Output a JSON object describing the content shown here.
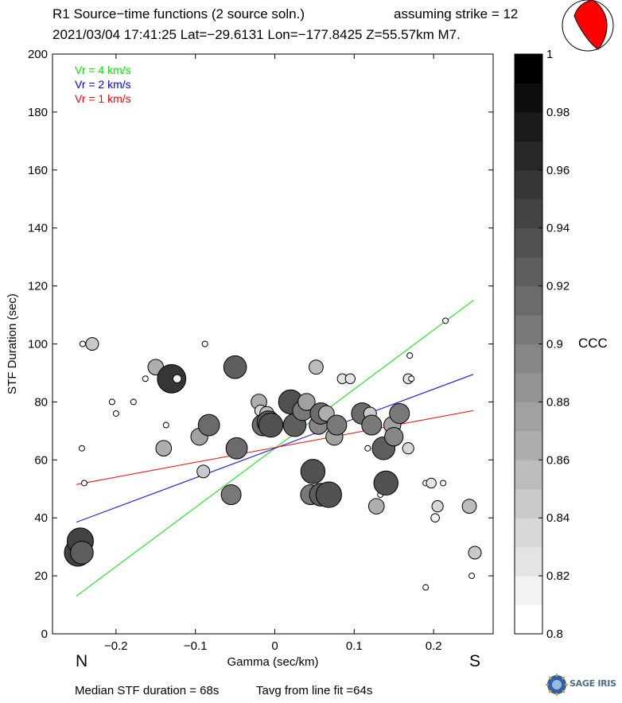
{
  "header": {
    "title_line1": "R1 Source−time functions (2 source soln.)",
    "strike_text": "assuming strike = 12",
    "title_line2": "2021/03/04 17:41:25  Lat=−29.6131 Lon=−177.8425  Z=55.57km  M7."
  },
  "directions": {
    "north": "N",
    "south": "S"
  },
  "summary": {
    "median_text": "Median STF duration = 68s",
    "tavg_text": "Tavg from line fit =64s"
  },
  "colorbar": {
    "label": "CCC",
    "min": 0.8,
    "max": 1.0,
    "levels": 20,
    "tick_values": [
      1,
      0.98,
      0.96,
      0.94,
      0.92,
      0.9,
      0.88,
      0.86,
      0.84,
      0.82,
      0.8
    ],
    "tick_labels": [
      "1",
      "0.98",
      "0.96",
      "0.94",
      "0.92",
      "0.9",
      "0.88",
      "0.86",
      "0.84",
      "0.82",
      "0.8"
    ]
  },
  "logo": {
    "text": "SAGE",
    "subtext": "IRIS",
    "icon": "nsf-globe-icon"
  },
  "chart_data": {
    "type": "scatter",
    "xlabel": "Gamma (sec/km)",
    "ylabel": "STF Duration (sec)",
    "xlim": [
      -0.28,
      0.275
    ],
    "ylim": [
      0,
      200
    ],
    "xticks": [
      -0.2,
      -0.1,
      0,
      0.1,
      0.2
    ],
    "xtick_labels": [
      "−0.2",
      "−0.1",
      "0",
      "0.1",
      "0.2"
    ],
    "yticks": [
      0,
      20,
      40,
      60,
      80,
      100,
      120,
      140,
      160,
      180,
      200
    ],
    "ytick_labels": [
      "0",
      "20",
      "40",
      "60",
      "80",
      "100",
      "120",
      "140",
      "160",
      "180",
      "200"
    ],
    "legend": [
      {
        "label": "Vr = 4 km/s",
        "color": "#00e600"
      },
      {
        "label": "Vr = 2 km/s",
        "color": "#0000ff"
      },
      {
        "label": "Vr = 1 km/s",
        "color": "#ff0000"
      }
    ],
    "lines": [
      {
        "name": "Vr = 4 km/s",
        "color": "#00e600",
        "x": [
          -0.25,
          0.25
        ],
        "y": [
          13,
          115
        ]
      },
      {
        "name": "Vr = 2 km/s",
        "color": "#0000ff",
        "x": [
          -0.25,
          0.25
        ],
        "y": [
          38.5,
          89.5
        ]
      },
      {
        "name": "Vr = 1 km/s",
        "color": "#ff0000",
        "x": [
          -0.25,
          0.25
        ],
        "y": [
          51.5,
          77
        ]
      }
    ],
    "points": [
      {
        "x": -0.248,
        "y": 28,
        "ccc": 0.95
      },
      {
        "x": -0.245,
        "y": 32,
        "ccc": 0.945
      },
      {
        "x": -0.243,
        "y": 28,
        "ccc": 0.92
      },
      {
        "x": -0.242,
        "y": 100,
        "ccc": 0.8
      },
      {
        "x": -0.243,
        "y": 64,
        "ccc": 0.8
      },
      {
        "x": -0.24,
        "y": 52,
        "ccc": 0.8
      },
      {
        "x": -0.23,
        "y": 100,
        "ccc": 0.85
      },
      {
        "x": -0.205,
        "y": 80,
        "ccc": 0.8
      },
      {
        "x": -0.2,
        "y": 76,
        "ccc": 0.8
      },
      {
        "x": -0.178,
        "y": 80,
        "ccc": 0.8
      },
      {
        "x": -0.163,
        "y": 88,
        "ccc": 0.8
      },
      {
        "x": -0.15,
        "y": 92,
        "ccc": 0.87
      },
      {
        "x": -0.14,
        "y": 64,
        "ccc": 0.87
      },
      {
        "x": -0.137,
        "y": 72,
        "ccc": 0.8
      },
      {
        "x": -0.13,
        "y": 88,
        "ccc": 0.96
      },
      {
        "x": -0.123,
        "y": 88,
        "ccc": 0.82
      },
      {
        "x": -0.095,
        "y": 68,
        "ccc": 0.88
      },
      {
        "x": -0.09,
        "y": 56,
        "ccc": 0.85
      },
      {
        "x": -0.088,
        "y": 100,
        "ccc": 0.8
      },
      {
        "x": -0.083,
        "y": 72,
        "ccc": 0.91
      },
      {
        "x": -0.055,
        "y": 48,
        "ccc": 0.9
      },
      {
        "x": -0.05,
        "y": 92,
        "ccc": 0.92
      },
      {
        "x": -0.048,
        "y": 64,
        "ccc": 0.91
      },
      {
        "x": -0.02,
        "y": 80,
        "ccc": 0.87
      },
      {
        "x": -0.018,
        "y": 77,
        "ccc": 0.84
      },
      {
        "x": -0.015,
        "y": 75,
        "ccc": 0.8
      },
      {
        "x": -0.01,
        "y": 76,
        "ccc": 0.86
      },
      {
        "x": -0.015,
        "y": 72,
        "ccc": 0.91
      },
      {
        "x": -0.008,
        "y": 73,
        "ccc": 0.92
      },
      {
        "x": -0.005,
        "y": 72,
        "ccc": 0.93
      },
      {
        "x": 0.02,
        "y": 80,
        "ccc": 0.93
      },
      {
        "x": 0.025,
        "y": 72,
        "ccc": 0.92
      },
      {
        "x": 0.035,
        "y": 77,
        "ccc": 0.9
      },
      {
        "x": 0.04,
        "y": 80,
        "ccc": 0.88
      },
      {
        "x": 0.045,
        "y": 48,
        "ccc": 0.9
      },
      {
        "x": 0.048,
        "y": 56,
        "ccc": 0.93
      },
      {
        "x": 0.052,
        "y": 92,
        "ccc": 0.86
      },
      {
        "x": 0.055,
        "y": 72,
        "ccc": 0.89
      },
      {
        "x": 0.058,
        "y": 48,
        "ccc": 0.92
      },
      {
        "x": 0.058,
        "y": 76,
        "ccc": 0.91
      },
      {
        "x": 0.065,
        "y": 76,
        "ccc": 0.87
      },
      {
        "x": 0.068,
        "y": 48,
        "ccc": 0.94
      },
      {
        "x": 0.075,
        "y": 68,
        "ccc": 0.88
      },
      {
        "x": 0.078,
        "y": 72,
        "ccc": 0.9
      },
      {
        "x": 0.085,
        "y": 88,
        "ccc": 0.83
      },
      {
        "x": 0.095,
        "y": 88,
        "ccc": 0.83
      },
      {
        "x": 0.11,
        "y": 76,
        "ccc": 0.91
      },
      {
        "x": 0.117,
        "y": 64,
        "ccc": 0.8
      },
      {
        "x": 0.12,
        "y": 76,
        "ccc": 0.85
      },
      {
        "x": 0.122,
        "y": 72,
        "ccc": 0.9
      },
      {
        "x": 0.128,
        "y": 44,
        "ccc": 0.87
      },
      {
        "x": 0.133,
        "y": 48,
        "ccc": 0.8
      },
      {
        "x": 0.137,
        "y": 64,
        "ccc": 0.92
      },
      {
        "x": 0.14,
        "y": 52,
        "ccc": 0.93
      },
      {
        "x": 0.148,
        "y": 72,
        "ccc": 0.88
      },
      {
        "x": 0.15,
        "y": 68,
        "ccc": 0.89
      },
      {
        "x": 0.157,
        "y": 76,
        "ccc": 0.9
      },
      {
        "x": 0.168,
        "y": 64,
        "ccc": 0.84
      },
      {
        "x": 0.168,
        "y": 88,
        "ccc": 0.83
      },
      {
        "x": 0.17,
        "y": 96,
        "ccc": 0.8
      },
      {
        "x": 0.172,
        "y": 88,
        "ccc": 0.8
      },
      {
        "x": 0.19,
        "y": 16,
        "ccc": 0.8
      },
      {
        "x": 0.19,
        "y": 52,
        "ccc": 0.8
      },
      {
        "x": 0.197,
        "y": 52,
        "ccc": 0.83
      },
      {
        "x": 0.202,
        "y": 40,
        "ccc": 0.82
      },
      {
        "x": 0.205,
        "y": 44,
        "ccc": 0.84
      },
      {
        "x": 0.212,
        "y": 52,
        "ccc": 0.8
      },
      {
        "x": 0.215,
        "y": 108,
        "ccc": 0.8
      },
      {
        "x": 0.245,
        "y": 44,
        "ccc": 0.86
      },
      {
        "x": 0.248,
        "y": 20,
        "ccc": 0.8
      },
      {
        "x": 0.252,
        "y": 28,
        "ccc": 0.85
      }
    ]
  }
}
